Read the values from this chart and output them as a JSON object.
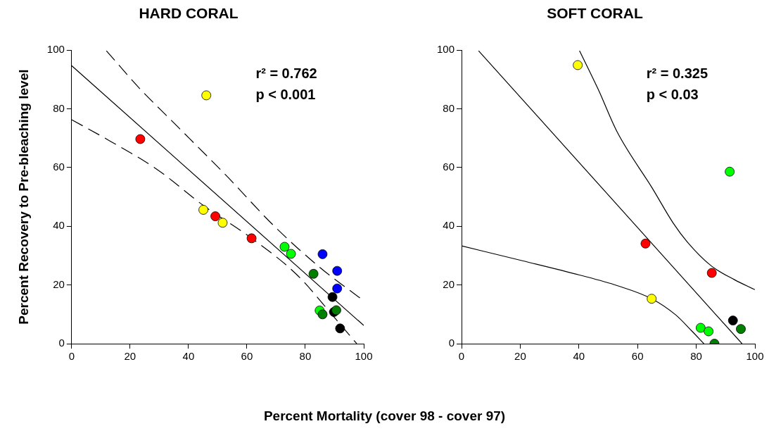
{
  "chart_data": [
    {
      "type": "scatter",
      "title": "HARD CORAL",
      "xlabel": "Percent Mortality (cover 98 - cover 97)",
      "ylabel": "Percent Recovery to Pre-bleaching level",
      "xlim": [
        0,
        100
      ],
      "ylim": [
        0,
        100
      ],
      "xticks": [
        0,
        20,
        40,
        60,
        80,
        100
      ],
      "yticks": [
        0,
        20,
        40,
        60,
        80,
        100
      ],
      "grid": false,
      "legend": false,
      "annotations": [
        "r² = 0.762",
        "p < 0.001"
      ],
      "series": [
        {
          "marker": "circle",
          "x": [
            46.1,
            23.5,
            45.1,
            49.2,
            51.7,
            61.6,
            72.9,
            75.1,
            85.9,
            90.9,
            90.9,
            82.8,
            89.3,
            84.9,
            85.9,
            89.8,
            90.6,
            91.9
          ],
          "values": [
            84.6,
            69.7,
            45.6,
            43.4,
            41.2,
            35.9,
            33.0,
            30.6,
            30.5,
            24.8,
            18.8,
            23.8,
            15.9,
            11.3,
            10.0,
            10.8,
            11.4,
            5.2
          ],
          "colors": [
            "#ffff00",
            "#ff0000",
            "#ffff00",
            "#ff0000",
            "#ffff00",
            "#ff0000",
            "#00ff00",
            "#00ff00",
            "#0000ff",
            "#0000ff",
            "#0000ff",
            "#007f00",
            "#000000",
            "#00ff00",
            "#007f00",
            "#000000",
            "#007f00",
            "#000000"
          ]
        },
        {
          "type": "line",
          "x": [
            0,
            100
          ],
          "values": [
            94.7,
            6.2
          ],
          "color": "#000000",
          "line_style": "solid"
        },
        {
          "type": "line",
          "x": [
            11.9,
            23.6,
            34.0,
            53.2,
            69.2,
            85.2,
            100
          ],
          "values": [
            99.8,
            86.6,
            76.2,
            57.0,
            40.2,
            25.8,
            14.6
          ],
          "color": "#000000",
          "line_style": "dashed"
        },
        {
          "type": "line",
          "x": [
            0,
            13.2,
            29.2,
            45.2,
            61.2,
            77.2,
            89.2,
            97.6
          ],
          "values": [
            76.3,
            69.0,
            59.4,
            47.0,
            36.2,
            23.4,
            9.8,
            0
          ],
          "color": "#000000",
          "line_style": "dashed"
        }
      ]
    },
    {
      "type": "scatter",
      "title": "SOFT CORAL",
      "xlim": [
        0,
        100
      ],
      "ylim": [
        0,
        100
      ],
      "xticks": [
        0,
        20,
        40,
        60,
        80,
        100
      ],
      "yticks": [
        0,
        20,
        40,
        60,
        80,
        100
      ],
      "grid": false,
      "legend": false,
      "annotations": [
        "r² = 0.325",
        "p < 0.03"
      ],
      "series": [
        {
          "marker": "circle",
          "x": [
            39.6,
            91.4,
            62.7,
            85.3,
            64.8,
            92.5,
            81.5,
            84.2,
            95.2,
            86.2
          ],
          "values": [
            94.9,
            58.6,
            34.1,
            24.1,
            15.3,
            7.9,
            5.4,
            4.2,
            5.0,
            0
          ],
          "colors": [
            "#ffff00",
            "#00ff00",
            "#ff0000",
            "#ff0000",
            "#ffff00",
            "#000000",
            "#00ff00",
            "#00ff00",
            "#007f00",
            "#007f00"
          ]
        },
        {
          "type": "line",
          "x": [
            5.8,
            95.6
          ],
          "values": [
            99.8,
            0
          ],
          "color": "#000000",
          "line_style": "solid"
        },
        {
          "type": "line",
          "x": [
            40.2,
            46.6,
            53.0,
            65.0,
            72.2,
            77.0,
            85.0,
            93.0,
            100
          ],
          "values": [
            99.8,
            86.6,
            72.2,
            53.0,
            41.0,
            34.6,
            26.6,
            21.8,
            18.4
          ],
          "color": "#000000",
          "line_style": "solid"
        },
        {
          "type": "line",
          "x": [
            0,
            21.0,
            40.2,
            53.0,
            64.8,
            73.0,
            78.6,
            82.6
          ],
          "values": [
            33.3,
            28.2,
            23.4,
            19.8,
            15.3,
            9.8,
            4.2,
            0
          ],
          "color": "#000000",
          "line_style": "solid"
        }
      ]
    }
  ]
}
